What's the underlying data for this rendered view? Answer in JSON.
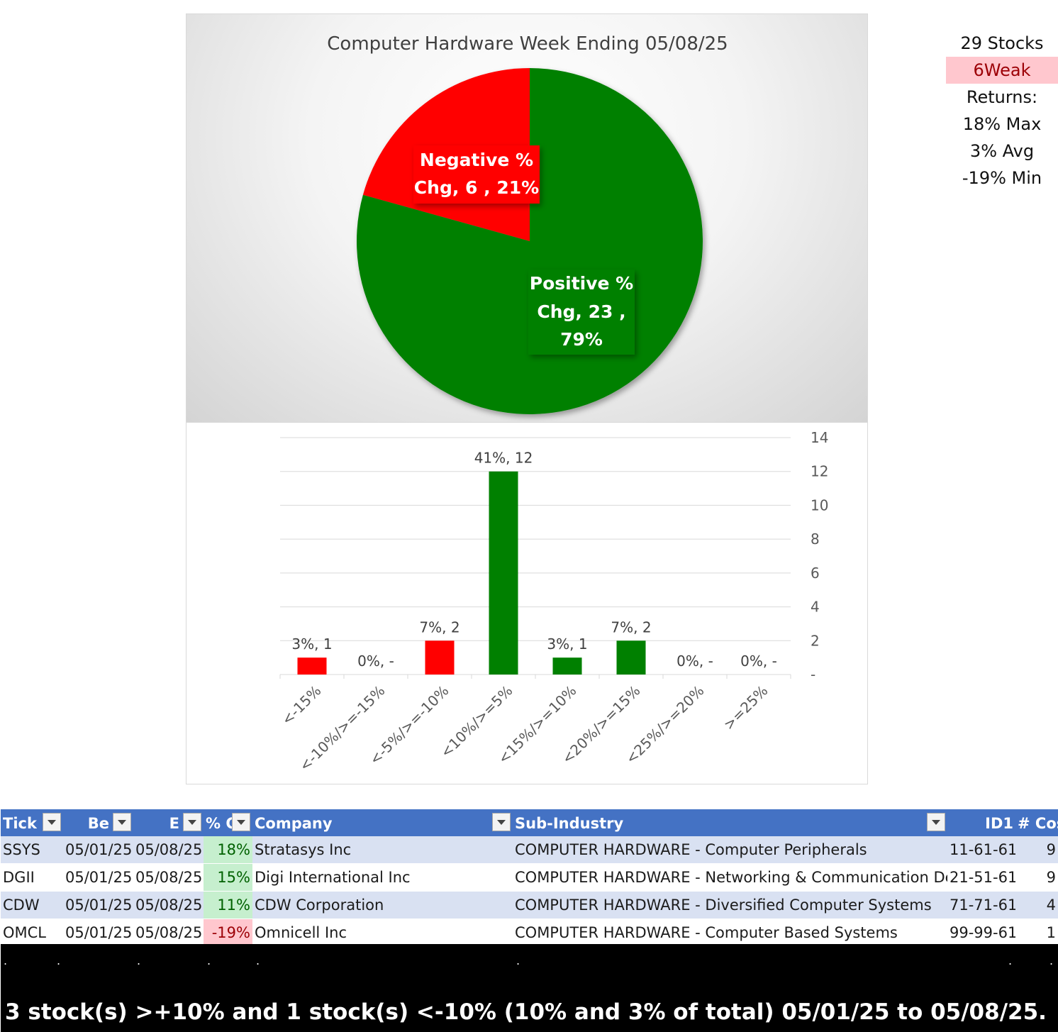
{
  "pie_chart": {
    "title": "Computer Hardware Week Ending 05/08/25",
    "negative_label_line1": "Negative %",
    "negative_label_line2": "Chg,  6 , 21%",
    "positive_label_line1": "Positive %",
    "positive_label_line2": "Chg,  23 ,",
    "positive_label_line3": "79%",
    "colors": {
      "negative": "#ff0000",
      "positive": "#008000"
    }
  },
  "side_stats": {
    "stocks": "29 Stocks",
    "weak": "6Weak",
    "returns": "Returns:",
    "max": "18% Max",
    "avg": "3% Avg",
    "min": "-19% Min"
  },
  "chart_data": [
    {
      "type": "pie",
      "title": "Computer Hardware Week Ending 05/08/25",
      "categories": [
        "Negative % Chg",
        "Positive % Chg"
      ],
      "values": [
        6,
        23
      ],
      "percents": [
        21,
        79
      ]
    },
    {
      "type": "bar",
      "categories": [
        "<-15%",
        "<-10%/>=-15%",
        "<-5%/>=-10%",
        "<10%/>=5%",
        "<15%/>=10%",
        "<20%/>=15%",
        "<25%/>=20%",
        ">=25%"
      ],
      "values": [
        1,
        0,
        2,
        12,
        1,
        2,
        0,
        0
      ],
      "data_labels": [
        "3%,  1",
        "0%,  -",
        "7%,  2",
        "41%,  12",
        "3%,  1",
        "7%,  2",
        "0%,  -",
        "0%,  -"
      ],
      "colors": [
        "#ff0000",
        "#ff0000",
        "#ff0000",
        "#008000",
        "#008000",
        "#008000",
        "#008000",
        "#008000"
      ],
      "y_ticks": [
        "-",
        "2",
        "4",
        "6",
        "8",
        "10",
        "12",
        "14"
      ],
      "ylim": [
        0,
        14
      ],
      "y_axis_side": "right",
      "grid": true
    }
  ],
  "table": {
    "headers": [
      "Tick",
      "Be",
      "E",
      "% C",
      "Company",
      "Sub-Industry",
      "ID1",
      "# Cos"
    ],
    "rows": [
      [
        "SSYS",
        "05/01/25",
        "05/08/25",
        "18%",
        "Stratasys Inc",
        "COMPUTER HARDWARE - Computer Peripherals",
        "11-61-61",
        "9"
      ],
      [
        "DGII",
        "05/01/25",
        "05/08/25",
        "15%",
        "Digi International Inc",
        "COMPUTER HARDWARE - Networking & Communication Dev",
        "21-51-61",
        "9"
      ],
      [
        "CDW",
        "05/01/25",
        "05/08/25",
        "11%",
        "CDW Corporation",
        "COMPUTER HARDWARE - Diversified Computer Systems",
        "71-71-61",
        "4"
      ],
      [
        "OMCL",
        "05/01/25",
        "05/08/25",
        "-19%",
        "Omnicell Inc",
        "COMPUTER HARDWARE - Computer Based Systems",
        "99-99-61",
        "1"
      ]
    ],
    "change_status": [
      "pos",
      "pos",
      "pos",
      "neg"
    ]
  },
  "bottom": {
    "dot": ".",
    "summary": "3 stock(s) >+10% and 1 stock(s) <-10% (10% and 3% of total) 05/01/25 to 05/08/25."
  }
}
